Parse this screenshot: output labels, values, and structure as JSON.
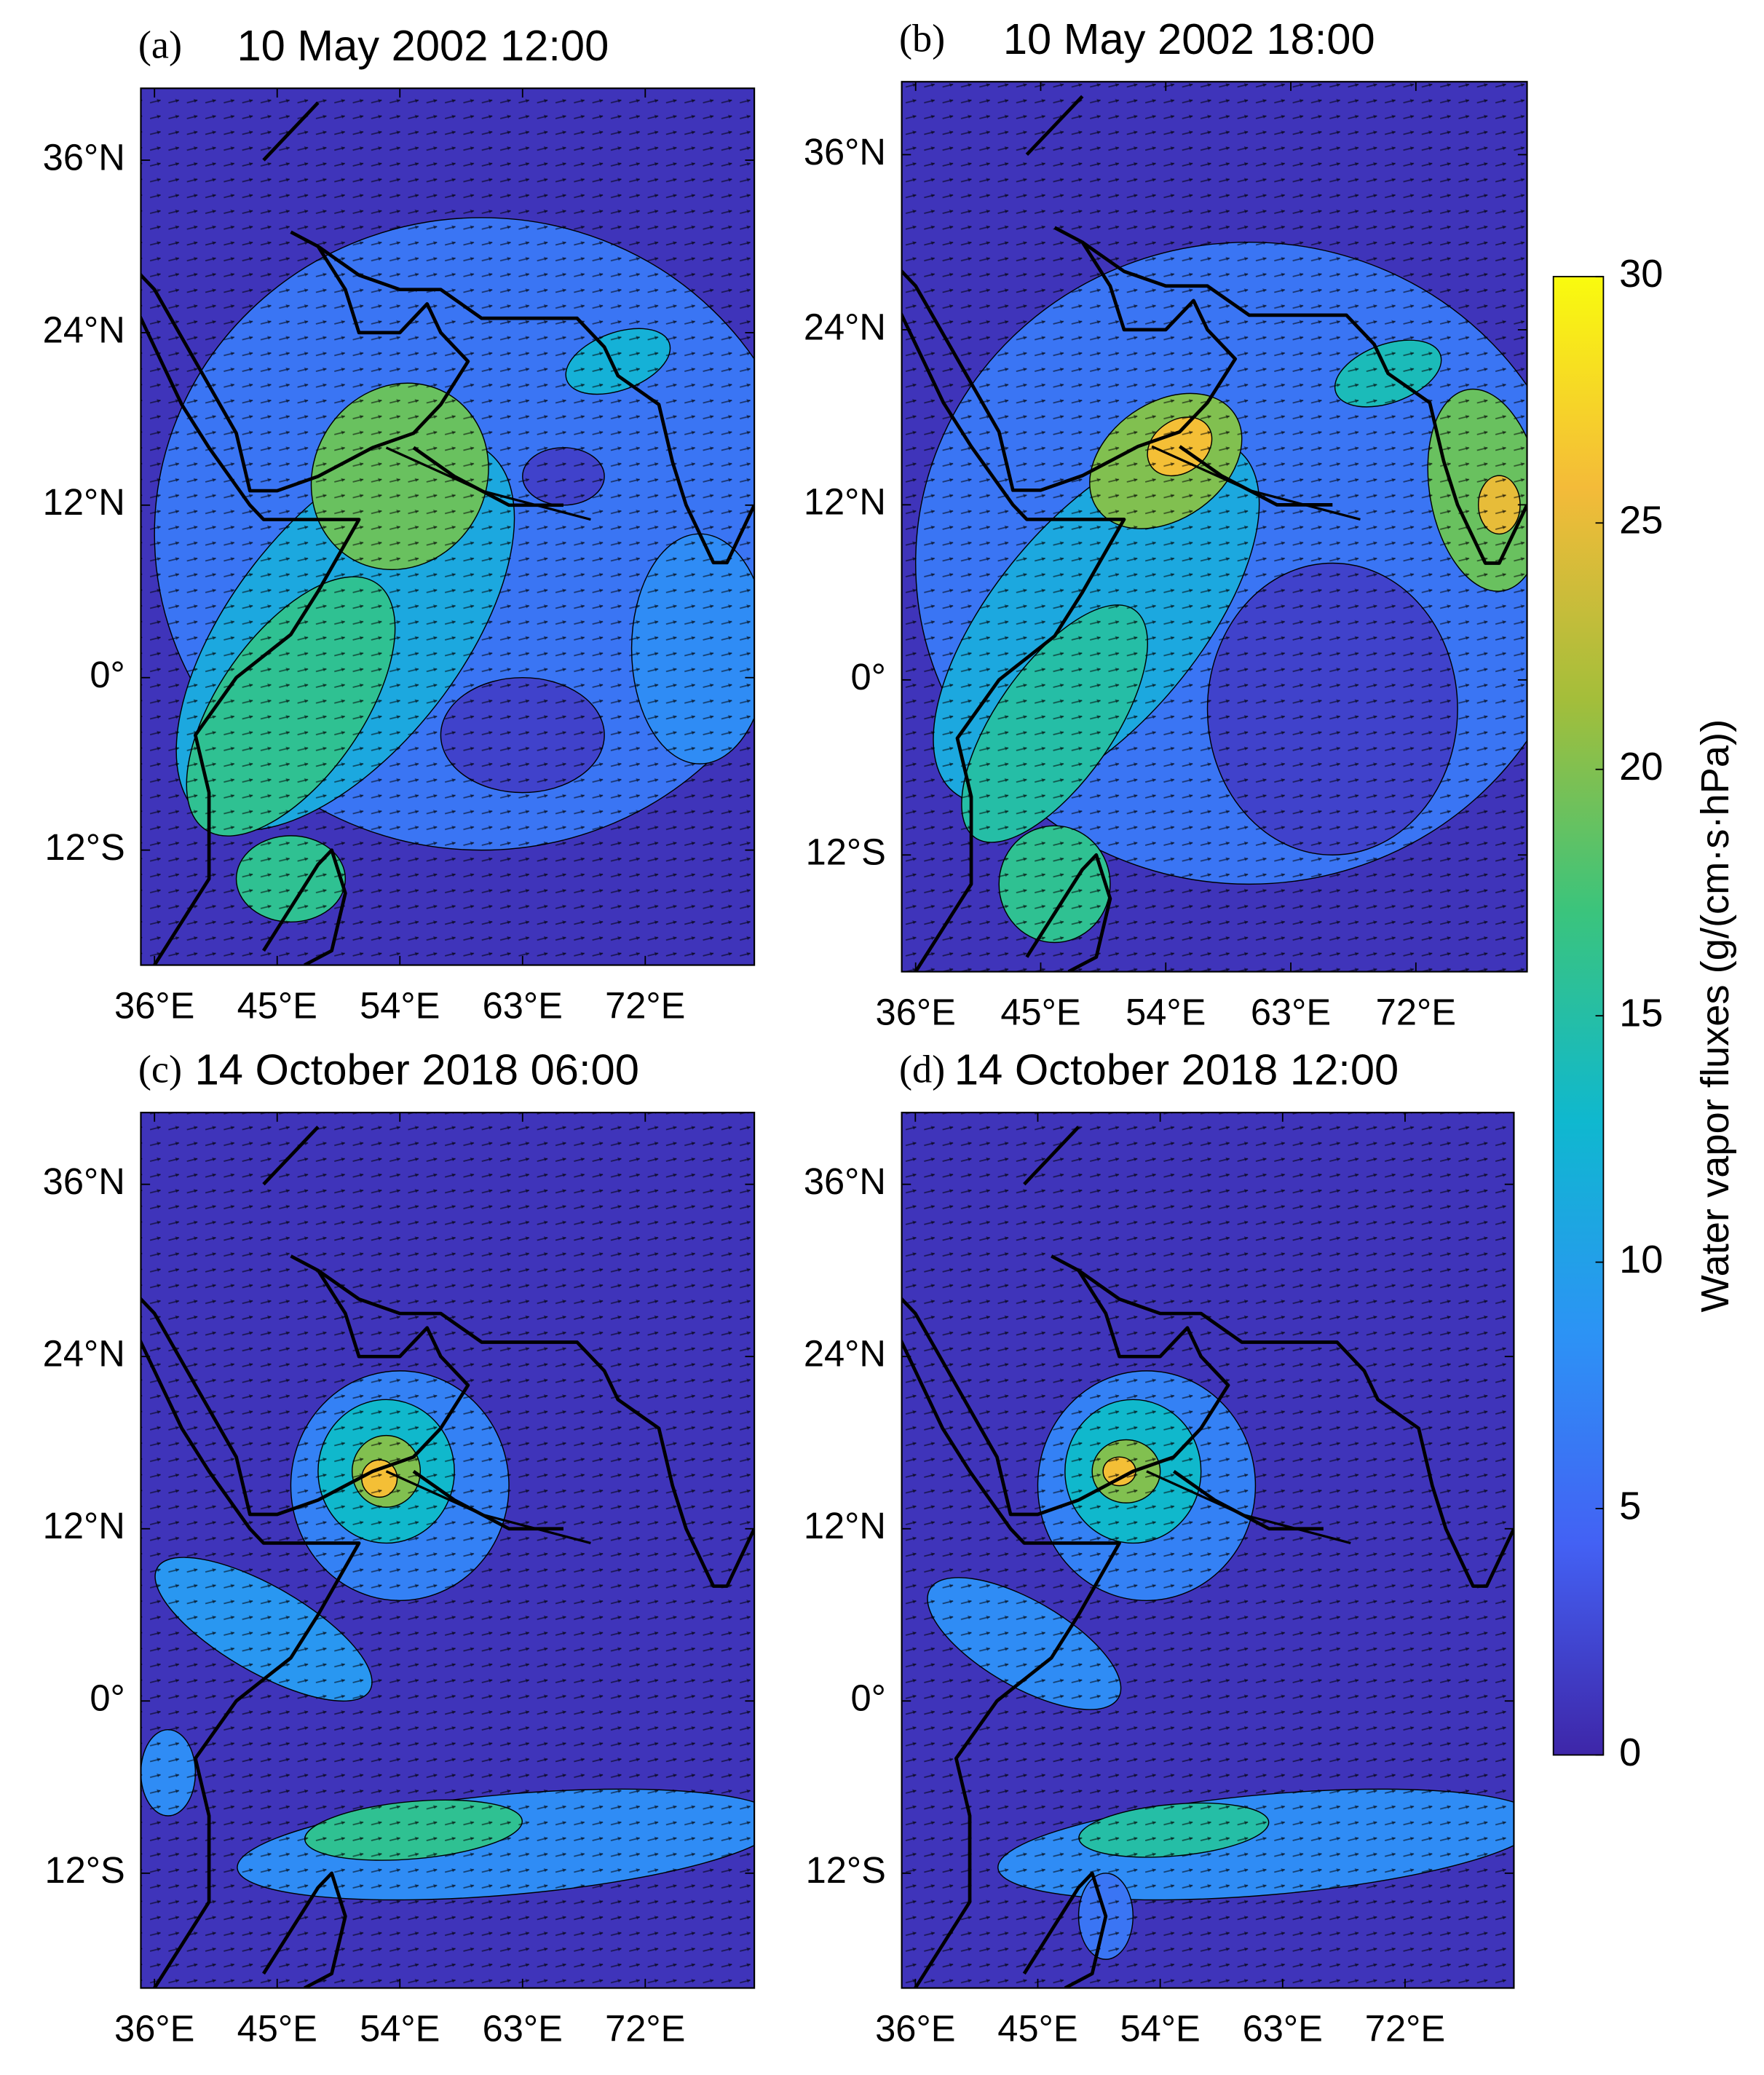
{
  "panels": [
    {
      "label": "(a)",
      "title": "10 May 2002 12:00",
      "xlim": [
        35,
        80
      ],
      "ylim": [
        -20,
        41
      ],
      "xticks": [
        {
          "value": 36,
          "label": "36°E"
        },
        {
          "value": 45,
          "label": "45°E"
        },
        {
          "value": 54,
          "label": "54°E"
        },
        {
          "value": 63,
          "label": "63°E"
        },
        {
          "value": 72,
          "label": "72°E"
        }
      ],
      "yticks": [
        {
          "value": 36,
          "label": "36°N"
        },
        {
          "value": 24,
          "label": "24°N"
        },
        {
          "value": 12,
          "label": "12°N"
        },
        {
          "value": 0,
          "label": "0°"
        },
        {
          "value": -12,
          "label": "12°S"
        }
      ]
    },
    {
      "label": "(b)",
      "title": "10 May 2002 18:00",
      "xlim": [
        35,
        80
      ],
      "ylim": [
        -20,
        41
      ],
      "xticks": [
        {
          "value": 36,
          "label": "36°E"
        },
        {
          "value": 45,
          "label": "45°E"
        },
        {
          "value": 54,
          "label": "54°E"
        },
        {
          "value": 63,
          "label": "63°E"
        },
        {
          "value": 72,
          "label": "72°E"
        }
      ],
      "yticks": [
        {
          "value": 36,
          "label": "36°N"
        },
        {
          "value": 24,
          "label": "24°N"
        },
        {
          "value": 12,
          "label": "12°N"
        },
        {
          "value": 0,
          "label": "0°"
        },
        {
          "value": -12,
          "label": "12°S"
        }
      ]
    },
    {
      "label": "(c)",
      "title": "14 October 2018 06:00",
      "xlim": [
        35,
        80
      ],
      "ylim": [
        -20,
        41
      ],
      "xticks": [
        {
          "value": 36,
          "label": "36°E"
        },
        {
          "value": 45,
          "label": "45°E"
        },
        {
          "value": 54,
          "label": "54°E"
        },
        {
          "value": 63,
          "label": "63°E"
        },
        {
          "value": 72,
          "label": "72°E"
        }
      ],
      "yticks": [
        {
          "value": 36,
          "label": "36°N"
        },
        {
          "value": 24,
          "label": "24°N"
        },
        {
          "value": 12,
          "label": "12°N"
        },
        {
          "value": 0,
          "label": "0°"
        },
        {
          "value": -12,
          "label": "12°S"
        }
      ]
    },
    {
      "label": "(d)",
      "title": "14 October 2018 12:00",
      "xlim": [
        35,
        80
      ],
      "ylim": [
        -20,
        41
      ],
      "xticks": [
        {
          "value": 36,
          "label": "36°E"
        },
        {
          "value": 45,
          "label": "45°E"
        },
        {
          "value": 54,
          "label": "54°E"
        },
        {
          "value": 63,
          "label": "63°E"
        },
        {
          "value": 72,
          "label": "72°E"
        }
      ],
      "yticks": [
        {
          "value": 36,
          "label": "36°N"
        },
        {
          "value": 24,
          "label": "24°N"
        },
        {
          "value": 12,
          "label": "12°N"
        },
        {
          "value": 0,
          "label": "0°"
        },
        {
          "value": -12,
          "label": "12°S"
        }
      ]
    }
  ],
  "colorbar": {
    "label": "Water vapor fluxes (g/(cm·s·hPa))",
    "lim": [
      0,
      30
    ],
    "ticks": [
      0,
      5,
      10,
      15,
      20,
      25,
      30
    ],
    "colors": [
      "#3e26a8",
      "#4361f4",
      "#2c93f5",
      "#0fb8cf",
      "#3bc47c",
      "#a4be3a",
      "#f4bb39",
      "#f9fb0e"
    ]
  }
}
